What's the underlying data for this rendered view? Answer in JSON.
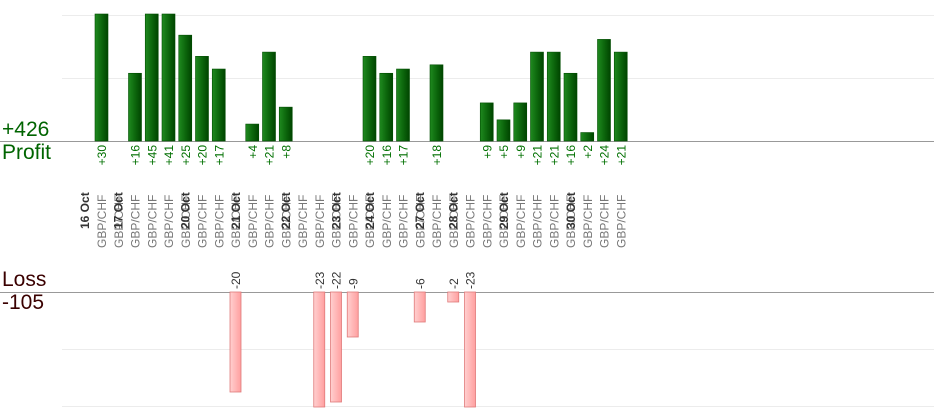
{
  "summary": {
    "profit_total": "+426",
    "profit_label": "Profit",
    "loss_label": "Loss",
    "loss_total": "-105"
  },
  "colors": {
    "profit_bar": "#0d6b0d",
    "profit_bar_dark": "#004d00",
    "profit_text": "#007000",
    "loss_bar": "#ffb3b3",
    "loss_bar_border": "#e07a7a",
    "loss_text": "#333333",
    "date_text": "#333333",
    "pair_text": "#777777",
    "gridline": "#ececec",
    "baseline": "#999999"
  },
  "chart_data": {
    "type": "bar",
    "profit_scale_max": 30,
    "loss_scale_max": 23,
    "dates": [
      "16 Oct",
      "17 Oct",
      "20 Oct",
      "21 Oct",
      "22 Oct",
      "23 Oct",
      "24 Oct",
      "27 Oct",
      "28 Oct",
      "29 Oct",
      "30 Oct"
    ],
    "columns": [
      {
        "date": "16 Oct",
        "pair": "GBP/CHF",
        "value": "+30",
        "kind": "profit"
      },
      {
        "date": "16 Oct",
        "pair": "GBP/CHF",
        "value": "",
        "kind": "none"
      },
      {
        "date": "17 Oct",
        "pair": "GBP/CHF",
        "value": "+16",
        "kind": "profit"
      },
      {
        "date": "17 Oct",
        "pair": "GBP/CHF",
        "value": "+45",
        "kind": "profit"
      },
      {
        "date": "17 Oct",
        "pair": "GBP/CHF",
        "value": "+41",
        "kind": "profit"
      },
      {
        "date": "17 Oct",
        "pair": "GBP/CHF",
        "value": "+25",
        "kind": "profit"
      },
      {
        "date": "20 Oct",
        "pair": "GBP/CHF",
        "value": "+20",
        "kind": "profit"
      },
      {
        "date": "20 Oct",
        "pair": "GBP/CHF",
        "value": "+17",
        "kind": "profit"
      },
      {
        "date": "20 Oct",
        "pair": "GBP/CHF",
        "value": "-20",
        "kind": "loss"
      },
      {
        "date": "21 Oct",
        "pair": "GBP/CHF",
        "value": "+4",
        "kind": "profit"
      },
      {
        "date": "21 Oct",
        "pair": "GBP/CHF",
        "value": "+21",
        "kind": "profit"
      },
      {
        "date": "21 Oct",
        "pair": "GBP/CHF",
        "value": "+8",
        "kind": "profit"
      },
      {
        "date": "22 Oct",
        "pair": "GBP/CHF",
        "value": "",
        "kind": "none"
      },
      {
        "date": "22 Oct",
        "pair": "GBP/CHF",
        "value": "-23",
        "kind": "loss"
      },
      {
        "date": "22 Oct",
        "pair": "GBP/CHF",
        "value": "-22",
        "kind": "loss"
      },
      {
        "date": "23 Oct",
        "pair": "GBP/CHF",
        "value": "-9",
        "kind": "loss"
      },
      {
        "date": "23 Oct",
        "pair": "GBP/CHF",
        "value": "+20",
        "kind": "profit"
      },
      {
        "date": "24 Oct",
        "pair": "GBP/CHF",
        "value": "+16",
        "kind": "profit"
      },
      {
        "date": "24 Oct",
        "pair": "GBP/CHF",
        "value": "+17",
        "kind": "profit"
      },
      {
        "date": "24 Oct",
        "pair": "GBP/CHF",
        "value": "-6",
        "kind": "loss"
      },
      {
        "date": "27 Oct",
        "pair": "GBP/CHF",
        "value": "+18",
        "kind": "profit"
      },
      {
        "date": "27 Oct",
        "pair": "GBP/CHF",
        "value": "-2",
        "kind": "loss"
      },
      {
        "date": "28 Oct",
        "pair": "GBP/CHF",
        "value": "-23",
        "kind": "loss"
      },
      {
        "date": "28 Oct",
        "pair": "GBP/CHF",
        "value": "+9",
        "kind": "profit"
      },
      {
        "date": "28 Oct",
        "pair": "GBP/CHF",
        "value": "+5",
        "kind": "profit"
      },
      {
        "date": "29 Oct",
        "pair": "GBP/CHF",
        "value": "+9",
        "kind": "profit"
      },
      {
        "date": "29 Oct",
        "pair": "GBP/CHF",
        "value": "+21",
        "kind": "profit"
      },
      {
        "date": "29 Oct",
        "pair": "GBP/CHF",
        "value": "+21",
        "kind": "profit"
      },
      {
        "date": "29 Oct",
        "pair": "GBP/CHF",
        "value": "+16",
        "kind": "profit"
      },
      {
        "date": "30 Oct",
        "pair": "GBP/CHF",
        "value": "+2",
        "kind": "profit"
      },
      {
        "date": "30 Oct",
        "pair": "GBP/CHF",
        "value": "+24",
        "kind": "profit"
      },
      {
        "date": "30 Oct",
        "pair": "GBP/CHF",
        "value": "+21",
        "kind": "profit"
      }
    ]
  }
}
